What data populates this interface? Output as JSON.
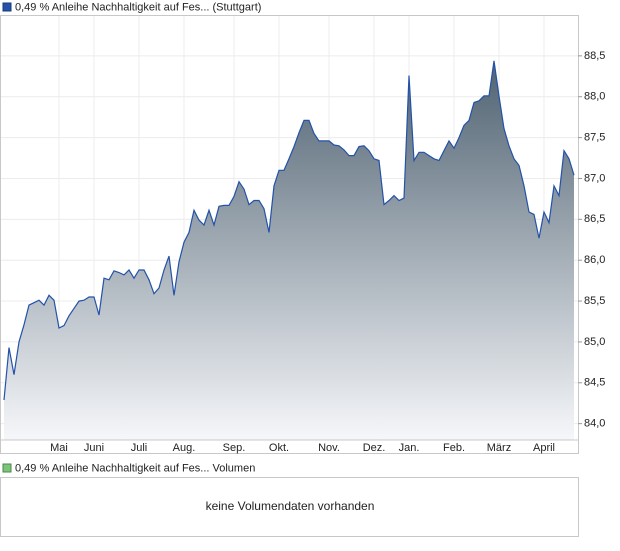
{
  "chart_data": [
    {
      "type": "area",
      "title": "0,49 % Anleihe Nachhaltigkeit auf Fes... (Stuttgart)",
      "categories": [
        null,
        null,
        null,
        null,
        null,
        null,
        null,
        null,
        null,
        null,
        null,
        "Mai",
        null,
        null,
        null,
        null,
        null,
        null,
        "Juni",
        null,
        null,
        null,
        null,
        null,
        null,
        null,
        null,
        "Juli",
        null,
        null,
        null,
        null,
        null,
        null,
        null,
        null,
        "Aug.",
        null,
        null,
        null,
        null,
        null,
        null,
        null,
        null,
        null,
        "Sep.",
        null,
        null,
        null,
        null,
        null,
        null,
        null,
        null,
        "Okt.",
        null,
        null,
        null,
        null,
        null,
        null,
        null,
        null,
        null,
        "Nov.",
        null,
        null,
        null,
        null,
        null,
        null,
        null,
        null,
        "Dez.",
        null,
        null,
        null,
        null,
        null,
        null,
        "Jan.",
        null,
        null,
        null,
        null,
        null,
        null,
        null,
        null,
        "Feb.",
        null,
        null,
        null,
        null,
        null,
        null,
        null,
        null,
        "März",
        null,
        null,
        null,
        null,
        null,
        null,
        null,
        null,
        "April",
        null,
        null,
        null,
        null,
        null,
        null
      ],
      "series": [
        {
          "name": "0,49 % Anleihe Nachhaltigkeit auf Fes... (Stuttgart)",
          "color": "#2352a8",
          "values": [
            84.29,
            84.93,
            84.6,
            85.0,
            85.21,
            85.45,
            85.48,
            85.51,
            85.45,
            85.57,
            85.51,
            85.17,
            85.2,
            85.32,
            85.41,
            85.5,
            85.51,
            85.55,
            85.55,
            85.33,
            85.78,
            85.76,
            85.87,
            85.85,
            85.82,
            85.88,
            85.78,
            85.88,
            85.88,
            85.76,
            85.59,
            85.66,
            85.88,
            86.05,
            85.57,
            85.98,
            86.22,
            86.34,
            86.61,
            86.49,
            86.43,
            86.61,
            86.43,
            86.66,
            86.67,
            86.67,
            86.78,
            86.96,
            86.87,
            86.68,
            86.73,
            86.73,
            86.63,
            86.34,
            86.91,
            87.1,
            87.1,
            87.24,
            87.39,
            87.56,
            87.71,
            87.71,
            87.55,
            87.46,
            87.46,
            87.46,
            87.41,
            87.4,
            87.35,
            87.28,
            87.28,
            87.39,
            87.4,
            87.34,
            87.24,
            87.22,
            86.68,
            86.73,
            86.79,
            86.73,
            86.76,
            88.26,
            87.22,
            87.32,
            87.32,
            87.28,
            87.24,
            87.22,
            87.34,
            87.46,
            87.37,
            87.5,
            87.65,
            87.71,
            87.93,
            87.95,
            88.01,
            88.01,
            88.44,
            88.01,
            87.61,
            87.4,
            87.24,
            87.16,
            86.91,
            86.59,
            86.56,
            86.27,
            86.59,
            86.46,
            86.91,
            86.79,
            87.34,
            87.24,
            87.04
          ]
        }
      ],
      "ylim": [
        83.8,
        89.0
      ],
      "yticks": [
        {
          "value": 84.0,
          "label": "84,0"
        },
        {
          "value": 84.5,
          "label": "84,5"
        },
        {
          "value": 85.0,
          "label": "85,0"
        },
        {
          "value": 85.5,
          "label": "85,5"
        },
        {
          "value": 86.0,
          "label": "86,0"
        },
        {
          "value": 86.5,
          "label": "86,5"
        },
        {
          "value": 87.0,
          "label": "87,0"
        },
        {
          "value": 87.5,
          "label": "87,5"
        },
        {
          "value": 88.0,
          "label": "88,0"
        },
        {
          "value": 88.5,
          "label": "88,5"
        }
      ],
      "grid": true
    },
    {
      "type": "volume",
      "title": "0,49 % Anleihe Nachhaltigkeit auf Fes... Volumen",
      "color": "#7cc47c",
      "message": "keine Volumendaten vorhanden"
    }
  ]
}
